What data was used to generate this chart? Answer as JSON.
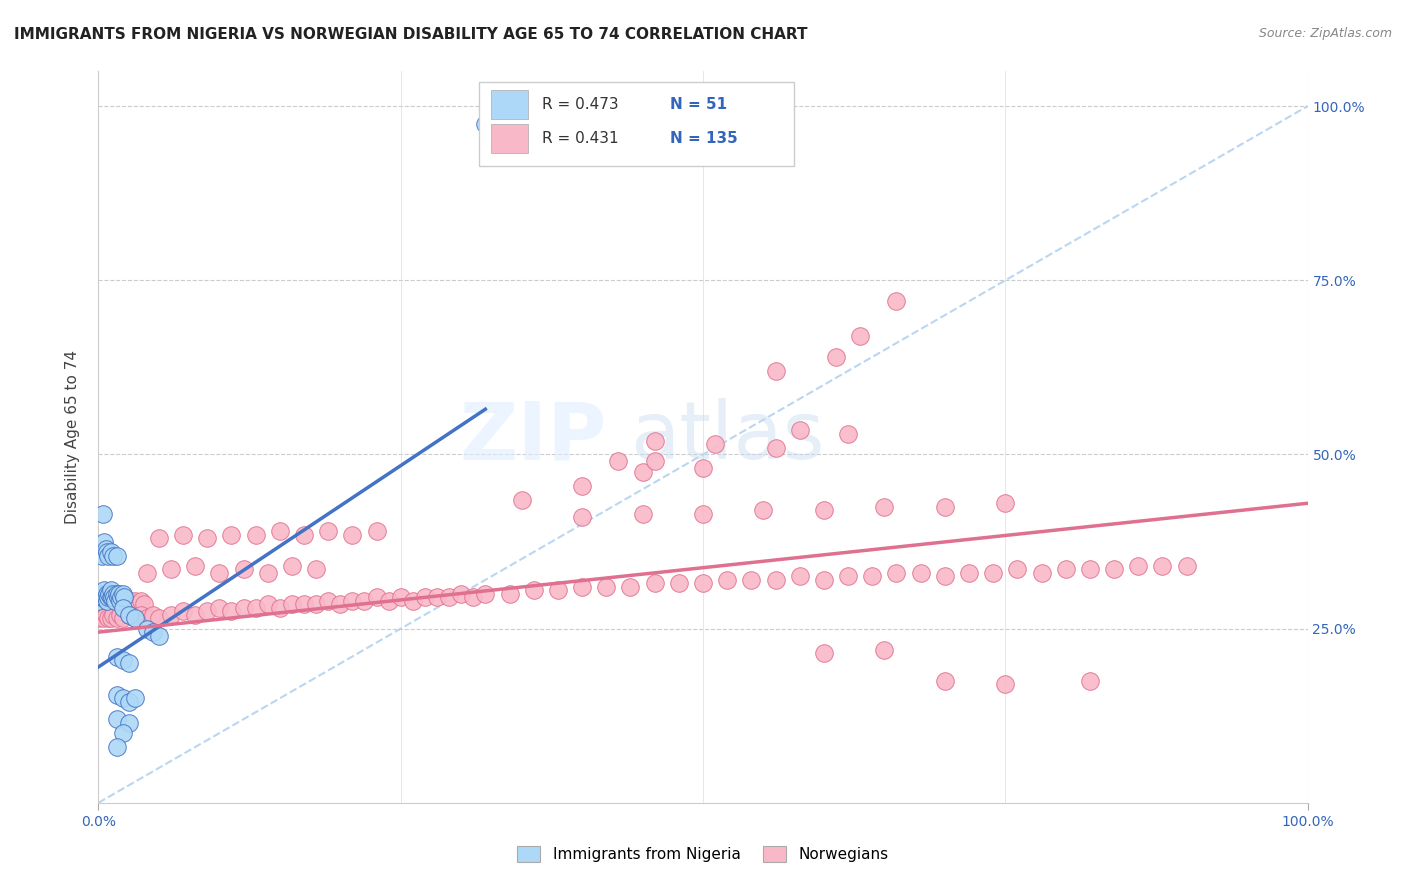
{
  "title": "IMMIGRANTS FROM NIGERIA VS NORWEGIAN DISABILITY AGE 65 TO 74 CORRELATION CHART",
  "source": "Source: ZipAtlas.com",
  "ylabel": "Disability Age 65 to 74",
  "xlim": [
    0.0,
    1.0
  ],
  "ylim": [
    0.0,
    1.05
  ],
  "legend_R1": "0.473",
  "legend_N1": "51",
  "legend_R2": "0.431",
  "legend_N2": "135",
  "blue_color": "#ADD8F7",
  "pink_color": "#F9B8C8",
  "line_blue": "#4472C4",
  "line_pink": "#E07090",
  "diagonal_color": "#AACCEE",
  "watermark_zip": "ZIP",
  "watermark_atlas": "atlas",
  "nigeria_points": [
    [
      0.0,
      0.29
    ],
    [
      0.002,
      0.295
    ],
    [
      0.003,
      0.3
    ],
    [
      0.004,
      0.295
    ],
    [
      0.005,
      0.305
    ],
    [
      0.006,
      0.295
    ],
    [
      0.007,
      0.29
    ],
    [
      0.007,
      0.3
    ],
    [
      0.008,
      0.295
    ],
    [
      0.009,
      0.3
    ],
    [
      0.01,
      0.295
    ],
    [
      0.01,
      0.305
    ],
    [
      0.011,
      0.295
    ],
    [
      0.012,
      0.3
    ],
    [
      0.013,
      0.295
    ],
    [
      0.014,
      0.29
    ],
    [
      0.015,
      0.3
    ],
    [
      0.016,
      0.295
    ],
    [
      0.017,
      0.3
    ],
    [
      0.018,
      0.29
    ],
    [
      0.019,
      0.295
    ],
    [
      0.02,
      0.3
    ],
    [
      0.021,
      0.295
    ],
    [
      0.003,
      0.355
    ],
    [
      0.005,
      0.375
    ],
    [
      0.006,
      0.365
    ],
    [
      0.007,
      0.36
    ],
    [
      0.008,
      0.355
    ],
    [
      0.01,
      0.36
    ],
    [
      0.012,
      0.355
    ],
    [
      0.015,
      0.355
    ],
    [
      0.004,
      0.415
    ],
    [
      0.02,
      0.28
    ],
    [
      0.025,
      0.27
    ],
    [
      0.03,
      0.265
    ],
    [
      0.015,
      0.21
    ],
    [
      0.02,
      0.205
    ],
    [
      0.025,
      0.2
    ],
    [
      0.015,
      0.155
    ],
    [
      0.02,
      0.15
    ],
    [
      0.025,
      0.145
    ],
    [
      0.03,
      0.15
    ],
    [
      0.015,
      0.12
    ],
    [
      0.025,
      0.115
    ],
    [
      0.02,
      0.1
    ],
    [
      0.015,
      0.08
    ],
    [
      0.32,
      0.975
    ],
    [
      0.04,
      0.25
    ],
    [
      0.045,
      0.245
    ],
    [
      0.05,
      0.24
    ]
  ],
  "norwegian_points": [
    [
      0.0,
      0.28
    ],
    [
      0.001,
      0.29
    ],
    [
      0.002,
      0.285
    ],
    [
      0.003,
      0.29
    ],
    [
      0.004,
      0.285
    ],
    [
      0.005,
      0.28
    ],
    [
      0.005,
      0.29
    ],
    [
      0.006,
      0.285
    ],
    [
      0.007,
      0.28
    ],
    [
      0.007,
      0.29
    ],
    [
      0.008,
      0.285
    ],
    [
      0.009,
      0.28
    ],
    [
      0.009,
      0.29
    ],
    [
      0.01,
      0.285
    ],
    [
      0.011,
      0.28
    ],
    [
      0.012,
      0.285
    ],
    [
      0.013,
      0.29
    ],
    [
      0.014,
      0.285
    ],
    [
      0.015,
      0.28
    ],
    [
      0.016,
      0.285
    ],
    [
      0.017,
      0.29
    ],
    [
      0.018,
      0.285
    ],
    [
      0.019,
      0.28
    ],
    [
      0.02,
      0.285
    ],
    [
      0.022,
      0.29
    ],
    [
      0.024,
      0.285
    ],
    [
      0.026,
      0.29
    ],
    [
      0.028,
      0.285
    ],
    [
      0.03,
      0.29
    ],
    [
      0.032,
      0.285
    ],
    [
      0.035,
      0.29
    ],
    [
      0.038,
      0.285
    ],
    [
      0.0,
      0.265
    ],
    [
      0.002,
      0.27
    ],
    [
      0.004,
      0.265
    ],
    [
      0.006,
      0.27
    ],
    [
      0.008,
      0.265
    ],
    [
      0.01,
      0.265
    ],
    [
      0.012,
      0.27
    ],
    [
      0.015,
      0.265
    ],
    [
      0.018,
      0.27
    ],
    [
      0.02,
      0.265
    ],
    [
      0.025,
      0.27
    ],
    [
      0.03,
      0.265
    ],
    [
      0.035,
      0.27
    ],
    [
      0.04,
      0.265
    ],
    [
      0.045,
      0.27
    ],
    [
      0.05,
      0.265
    ],
    [
      0.06,
      0.27
    ],
    [
      0.07,
      0.275
    ],
    [
      0.08,
      0.27
    ],
    [
      0.09,
      0.275
    ],
    [
      0.1,
      0.28
    ],
    [
      0.11,
      0.275
    ],
    [
      0.12,
      0.28
    ],
    [
      0.13,
      0.28
    ],
    [
      0.14,
      0.285
    ],
    [
      0.15,
      0.28
    ],
    [
      0.16,
      0.285
    ],
    [
      0.17,
      0.285
    ],
    [
      0.18,
      0.285
    ],
    [
      0.19,
      0.29
    ],
    [
      0.2,
      0.285
    ],
    [
      0.21,
      0.29
    ],
    [
      0.22,
      0.29
    ],
    [
      0.23,
      0.295
    ],
    [
      0.24,
      0.29
    ],
    [
      0.25,
      0.295
    ],
    [
      0.26,
      0.29
    ],
    [
      0.27,
      0.295
    ],
    [
      0.28,
      0.295
    ],
    [
      0.29,
      0.295
    ],
    [
      0.3,
      0.3
    ],
    [
      0.31,
      0.295
    ],
    [
      0.32,
      0.3
    ],
    [
      0.34,
      0.3
    ],
    [
      0.36,
      0.305
    ],
    [
      0.38,
      0.305
    ],
    [
      0.4,
      0.31
    ],
    [
      0.42,
      0.31
    ],
    [
      0.44,
      0.31
    ],
    [
      0.46,
      0.315
    ],
    [
      0.48,
      0.315
    ],
    [
      0.5,
      0.315
    ],
    [
      0.52,
      0.32
    ],
    [
      0.54,
      0.32
    ],
    [
      0.56,
      0.32
    ],
    [
      0.58,
      0.325
    ],
    [
      0.6,
      0.32
    ],
    [
      0.62,
      0.325
    ],
    [
      0.64,
      0.325
    ],
    [
      0.66,
      0.33
    ],
    [
      0.68,
      0.33
    ],
    [
      0.7,
      0.325
    ],
    [
      0.72,
      0.33
    ],
    [
      0.74,
      0.33
    ],
    [
      0.76,
      0.335
    ],
    [
      0.78,
      0.33
    ],
    [
      0.8,
      0.335
    ],
    [
      0.82,
      0.335
    ],
    [
      0.84,
      0.335
    ],
    [
      0.86,
      0.34
    ],
    [
      0.88,
      0.34
    ],
    [
      0.9,
      0.34
    ],
    [
      0.04,
      0.33
    ],
    [
      0.06,
      0.335
    ],
    [
      0.08,
      0.34
    ],
    [
      0.1,
      0.33
    ],
    [
      0.12,
      0.335
    ],
    [
      0.14,
      0.33
    ],
    [
      0.16,
      0.34
    ],
    [
      0.18,
      0.335
    ],
    [
      0.05,
      0.38
    ],
    [
      0.07,
      0.385
    ],
    [
      0.09,
      0.38
    ],
    [
      0.11,
      0.385
    ],
    [
      0.13,
      0.385
    ],
    [
      0.15,
      0.39
    ],
    [
      0.17,
      0.385
    ],
    [
      0.19,
      0.39
    ],
    [
      0.21,
      0.385
    ],
    [
      0.23,
      0.39
    ],
    [
      0.4,
      0.41
    ],
    [
      0.45,
      0.415
    ],
    [
      0.5,
      0.415
    ],
    [
      0.55,
      0.42
    ],
    [
      0.6,
      0.42
    ],
    [
      0.65,
      0.425
    ],
    [
      0.7,
      0.425
    ],
    [
      0.75,
      0.43
    ],
    [
      0.35,
      0.435
    ],
    [
      0.4,
      0.455
    ],
    [
      0.45,
      0.475
    ],
    [
      0.5,
      0.48
    ],
    [
      0.43,
      0.49
    ],
    [
      0.46,
      0.49
    ],
    [
      0.46,
      0.52
    ],
    [
      0.51,
      0.515
    ],
    [
      0.56,
      0.51
    ],
    [
      0.58,
      0.535
    ],
    [
      0.62,
      0.53
    ],
    [
      0.56,
      0.62
    ],
    [
      0.61,
      0.64
    ],
    [
      0.63,
      0.67
    ],
    [
      0.66,
      0.72
    ],
    [
      0.6,
      0.215
    ],
    [
      0.65,
      0.22
    ],
    [
      0.7,
      0.175
    ],
    [
      0.75,
      0.17
    ],
    [
      0.82,
      0.175
    ]
  ],
  "blue_line": [
    [
      0.0,
      0.195
    ],
    [
      0.32,
      0.565
    ]
  ],
  "pink_line": [
    [
      0.0,
      0.245
    ],
    [
      1.0,
      0.43
    ]
  ]
}
